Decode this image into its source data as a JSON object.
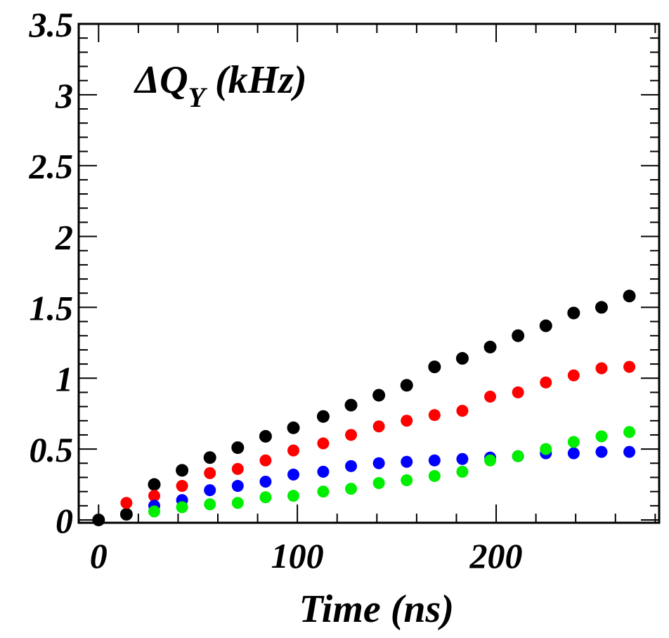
{
  "chart_data": {
    "type": "scatter",
    "title": "",
    "annotation": {
      "prefix": "ΔQ",
      "subscript": "Y",
      "suffix": " (kHz)"
    },
    "xlabel": "Time (ns)",
    "ylabel": "",
    "xlim": [
      -10,
      282
    ],
    "ylim": [
      -0.02,
      3.5
    ],
    "x_ticks": [
      {
        "value": 0,
        "label": "0"
      },
      {
        "value": 100,
        "label": "100"
      },
      {
        "value": 200,
        "label": "200"
      }
    ],
    "y_ticks": [
      {
        "value": 0,
        "label": "0"
      },
      {
        "value": 0.5,
        "label": "0.5"
      },
      {
        "value": 1,
        "label": "1"
      },
      {
        "value": 1.5,
        "label": "1.5"
      },
      {
        "value": 2,
        "label": "2"
      },
      {
        "value": 2.5,
        "label": "2.5"
      },
      {
        "value": 3,
        "label": "3"
      },
      {
        "value": 3.5,
        "label": "3.5"
      }
    ],
    "grid": false,
    "series": [
      {
        "color": "#000000",
        "points": [
          [
            0,
            0.0
          ],
          [
            14,
            0.04
          ],
          [
            28,
            0.25
          ],
          [
            42,
            0.35
          ],
          [
            56,
            0.44
          ],
          [
            70,
            0.51
          ],
          [
            84,
            0.59
          ],
          [
            98,
            0.65
          ],
          [
            113,
            0.73
          ],
          [
            127,
            0.81
          ],
          [
            141,
            0.88
          ],
          [
            155,
            0.95
          ],
          [
            169,
            1.08
          ],
          [
            183,
            1.14
          ],
          [
            197,
            1.22
          ],
          [
            211,
            1.3
          ],
          [
            225,
            1.37
          ],
          [
            239,
            1.46
          ],
          [
            253,
            1.5
          ],
          [
            267,
            1.58
          ]
        ]
      },
      {
        "color": "#ff0000",
        "points": [
          [
            14,
            0.12
          ],
          [
            28,
            0.17
          ],
          [
            42,
            0.24
          ],
          [
            56,
            0.33
          ],
          [
            70,
            0.36
          ],
          [
            84,
            0.42
          ],
          [
            98,
            0.49
          ],
          [
            113,
            0.54
          ],
          [
            127,
            0.6
          ],
          [
            141,
            0.66
          ],
          [
            155,
            0.7
          ],
          [
            169,
            0.74
          ],
          [
            183,
            0.77
          ],
          [
            197,
            0.87
          ],
          [
            211,
            0.9
          ],
          [
            225,
            0.97
          ],
          [
            239,
            1.02
          ],
          [
            253,
            1.07
          ],
          [
            267,
            1.08
          ]
        ]
      },
      {
        "color": "#0000ff",
        "points": [
          [
            28,
            0.1
          ],
          [
            42,
            0.14
          ],
          [
            56,
            0.21
          ],
          [
            70,
            0.24
          ],
          [
            84,
            0.27
          ],
          [
            98,
            0.32
          ],
          [
            113,
            0.34
          ],
          [
            127,
            0.38
          ],
          [
            141,
            0.4
          ],
          [
            155,
            0.41
          ],
          [
            169,
            0.42
          ],
          [
            183,
            0.43
          ],
          [
            197,
            0.44
          ],
          [
            211,
            0.45
          ],
          [
            225,
            0.47
          ],
          [
            239,
            0.47
          ],
          [
            253,
            0.48
          ],
          [
            267,
            0.48
          ]
        ]
      },
      {
        "color": "#00ee00",
        "points": [
          [
            28,
            0.06
          ],
          [
            42,
            0.09
          ],
          [
            56,
            0.11
          ],
          [
            70,
            0.12
          ],
          [
            84,
            0.16
          ],
          [
            98,
            0.17
          ],
          [
            113,
            0.2
          ],
          [
            127,
            0.22
          ],
          [
            141,
            0.26
          ],
          [
            155,
            0.28
          ],
          [
            169,
            0.31
          ],
          [
            183,
            0.34
          ],
          [
            197,
            0.42
          ],
          [
            211,
            0.45
          ],
          [
            225,
            0.5
          ],
          [
            239,
            0.55
          ],
          [
            253,
            0.59
          ],
          [
            267,
            0.62
          ]
        ]
      }
    ]
  }
}
